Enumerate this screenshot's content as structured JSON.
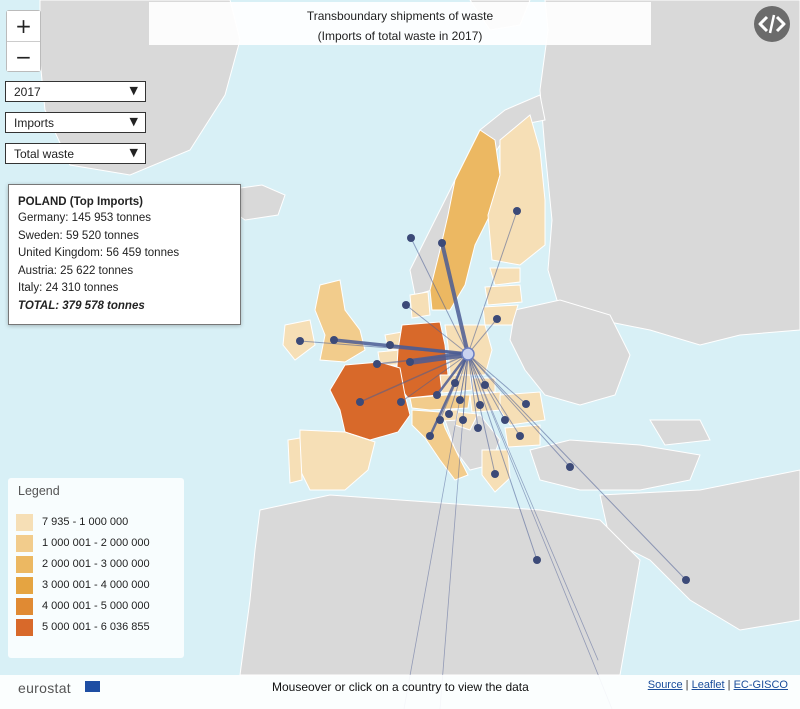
{
  "title": {
    "line1": "Transboundary shipments of waste",
    "line2": "(Imports of total waste in 2017)"
  },
  "zoom": {
    "in_label": "+",
    "out_label": "−"
  },
  "controls": {
    "year": "2017",
    "flow": "Imports",
    "waste_type": "Total waste"
  },
  "info_panel": {
    "heading": "POLAND (Top Imports)",
    "rows": [
      "Germany: 145 953 tonnes",
      "Sweden: 59 520 tonnes",
      "United Kingdom: 56 459 tonnes",
      "Austria: 25 622 tonnes",
      "Italy: 24 310 tonnes"
    ],
    "total": "TOTAL: 379 578 tonnes"
  },
  "legend": {
    "title": "Legend",
    "classes": [
      {
        "label": "7 935 - 1 000 000",
        "color": "#f6dfb6"
      },
      {
        "label": "1 000 001 - 2 000 000",
        "color": "#f2cc8c"
      },
      {
        "label": "2 000 001 - 3 000 000",
        "color": "#ecb862"
      },
      {
        "label": "3 000 001 - 4 000 000",
        "color": "#e5a441"
      },
      {
        "label": "4 000 001 - 5 000 000",
        "color": "#e08a33"
      },
      {
        "label": "5 000 001 - 6 036 855",
        "color": "#d8692a"
      }
    ]
  },
  "footer": {
    "brand": "eurostat",
    "hint": "Mouseover or click on a country to view the data",
    "link_source": "Source",
    "link_leaflet": "Leaflet",
    "link_gisco": "EC-GISCO",
    "separator": " | "
  },
  "colors": {
    "sea": "#d8f0f6",
    "land_other": "#d9d9d9",
    "flow_line": "#4b5c94",
    "node": "#3c4a78",
    "selected_node": "#c9d3f0"
  },
  "icons": [
    "zoom-in-icon",
    "zoom-out-icon",
    "chevron-down-icon",
    "code-icon",
    "eu-flag-icon"
  ]
}
